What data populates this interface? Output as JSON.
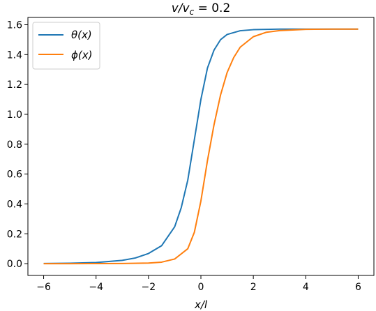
{
  "chart_data": {
    "type": "line",
    "title": "v/v_c = 0.2",
    "title_parts": {
      "main": "v/v",
      "sub": "c",
      "rest": " = 0.2"
    },
    "xlabel": "x/l",
    "ylabel": "",
    "xlim": [
      -6.6,
      6.6
    ],
    "ylim": [
      -0.079,
      1.649
    ],
    "xticks": [
      -6,
      -4,
      -2,
      0,
      2,
      4,
      6
    ],
    "xtick_labels": [
      "−6",
      "−4",
      "−2",
      "0",
      "2",
      "4",
      "6"
    ],
    "yticks": [
      0.0,
      0.2,
      0.4,
      0.6,
      0.8,
      1.0,
      1.2,
      1.4,
      1.6
    ],
    "ytick_labels": [
      "0.0",
      "0.2",
      "0.4",
      "0.6",
      "0.8",
      "1.0",
      "1.2",
      "1.4",
      "1.6"
    ],
    "grid": false,
    "legend_position": "top-left",
    "series": [
      {
        "name": "θ(x)",
        "color": "#1f77b4",
        "x": [
          -6,
          -5,
          -4,
          -3,
          -2.5,
          -2,
          -1.5,
          -1,
          -0.75,
          -0.5,
          -0.25,
          0,
          0.25,
          0.5,
          0.75,
          1,
          1.5,
          2,
          2.5,
          3,
          4,
          5,
          6
        ],
        "y": [
          0.0008,
          0.0025,
          0.0075,
          0.022,
          0.038,
          0.068,
          0.12,
          0.247,
          0.375,
          0.56,
          0.83,
          1.1,
          1.31,
          1.43,
          1.5,
          1.535,
          1.56,
          1.567,
          1.569,
          1.5705,
          1.5707,
          1.5708,
          1.5708
        ]
      },
      {
        "name": "ϕ(x)",
        "color": "#ff7f0e",
        "x": [
          -6,
          -5,
          -4,
          -3,
          -2,
          -1.5,
          -1,
          -0.5,
          -0.25,
          0,
          0.25,
          0.5,
          0.75,
          1,
          1.25,
          1.5,
          2,
          2.5,
          3,
          4,
          5,
          6
        ],
        "y": [
          0.0,
          0.0,
          0.0003,
          0.001,
          0.004,
          0.01,
          0.031,
          0.1,
          0.21,
          0.42,
          0.69,
          0.93,
          1.13,
          1.28,
          1.38,
          1.45,
          1.52,
          1.55,
          1.561,
          1.569,
          1.5705,
          1.5708
        ]
      }
    ]
  }
}
